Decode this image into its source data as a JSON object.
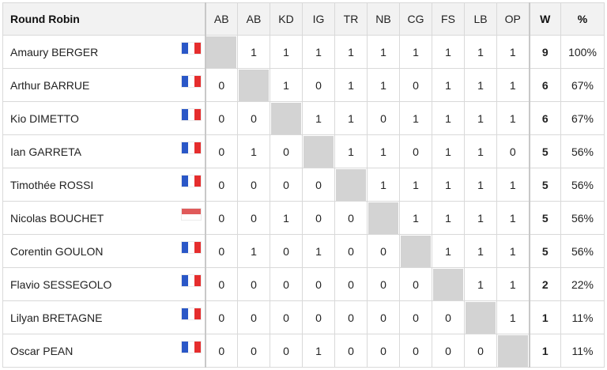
{
  "table": {
    "title": "Round Robin",
    "columns": [
      "AB",
      "AB",
      "KD",
      "IG",
      "TR",
      "NB",
      "CG",
      "FS",
      "LB",
      "OP"
    ],
    "w_header": "W",
    "pct_header": "%",
    "rows": [
      {
        "name": "Amaury BERGER",
        "flag": "flag-france",
        "results": [
          null,
          "1",
          "1",
          "1",
          "1",
          "1",
          "1",
          "1",
          "1",
          "1"
        ],
        "wins": "9",
        "pct": "100%"
      },
      {
        "name": "Arthur BARRUE",
        "flag": "flag-france",
        "results": [
          "0",
          null,
          "1",
          "0",
          "1",
          "1",
          "0",
          "1",
          "1",
          "1"
        ],
        "wins": "6",
        "pct": "67%"
      },
      {
        "name": "Kio DIMETTO",
        "flag": "flag-france",
        "results": [
          "0",
          "0",
          null,
          "1",
          "1",
          "0",
          "1",
          "1",
          "1",
          "1"
        ],
        "wins": "6",
        "pct": "67%"
      },
      {
        "name": "Ian GARRETA",
        "flag": "flag-france",
        "results": [
          "0",
          "1",
          "0",
          null,
          "1",
          "1",
          "0",
          "1",
          "1",
          "0"
        ],
        "wins": "5",
        "pct": "56%"
      },
      {
        "name": "Timothée ROSSI",
        "flag": "flag-france",
        "results": [
          "0",
          "0",
          "0",
          "0",
          null,
          "1",
          "1",
          "1",
          "1",
          "1"
        ],
        "wins": "5",
        "pct": "56%"
      },
      {
        "name": "Nicolas BOUCHET",
        "flag": "flag-monaco",
        "results": [
          "0",
          "0",
          "1",
          "0",
          "0",
          null,
          "1",
          "1",
          "1",
          "1"
        ],
        "wins": "5",
        "pct": "56%"
      },
      {
        "name": "Corentin GOULON",
        "flag": "flag-france",
        "results": [
          "0",
          "1",
          "0",
          "1",
          "0",
          "0",
          null,
          "1",
          "1",
          "1"
        ],
        "wins": "5",
        "pct": "56%"
      },
      {
        "name": "Flavio SESSEGOLO",
        "flag": "flag-france",
        "results": [
          "0",
          "0",
          "0",
          "0",
          "0",
          "0",
          "0",
          null,
          "1",
          "1"
        ],
        "wins": "2",
        "pct": "22%"
      },
      {
        "name": "Lilyan BRETAGNE",
        "flag": "flag-france",
        "results": [
          "0",
          "0",
          "0",
          "0",
          "0",
          "0",
          "0",
          "0",
          null,
          "1"
        ],
        "wins": "1",
        "pct": "11%"
      },
      {
        "name": "Oscar PEAN",
        "flag": "flag-france",
        "results": [
          "0",
          "0",
          "0",
          "1",
          "0",
          "0",
          "0",
          "0",
          "0",
          null
        ],
        "wins": "1",
        "pct": "11%"
      }
    ]
  }
}
